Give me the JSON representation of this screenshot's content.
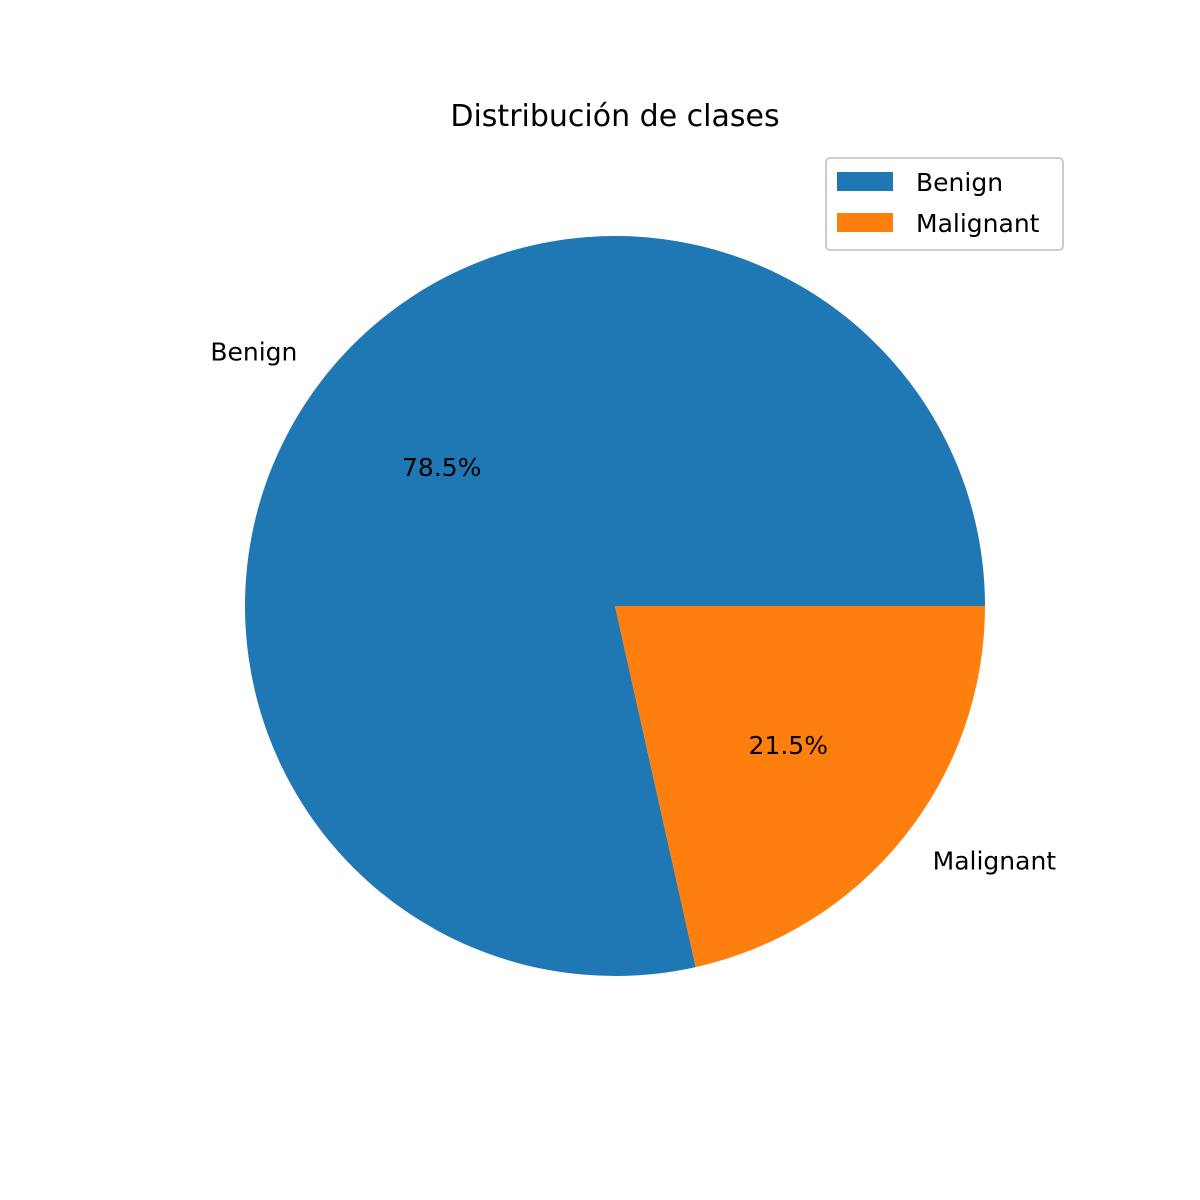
{
  "chart_data": {
    "type": "pie",
    "title": "Distribución de clases",
    "categories": [
      "Benign",
      "Malignant"
    ],
    "values": [
      78.5,
      21.5
    ],
    "value_labels": [
      "78.5%",
      "21.5%"
    ],
    "colors": [
      "#1f77b4",
      "#ff7f0e"
    ],
    "start_angle_deg": 0,
    "direction": "counterclockwise",
    "legend": {
      "position": "top-right",
      "entries": [
        "Benign",
        "Malignant"
      ]
    }
  }
}
